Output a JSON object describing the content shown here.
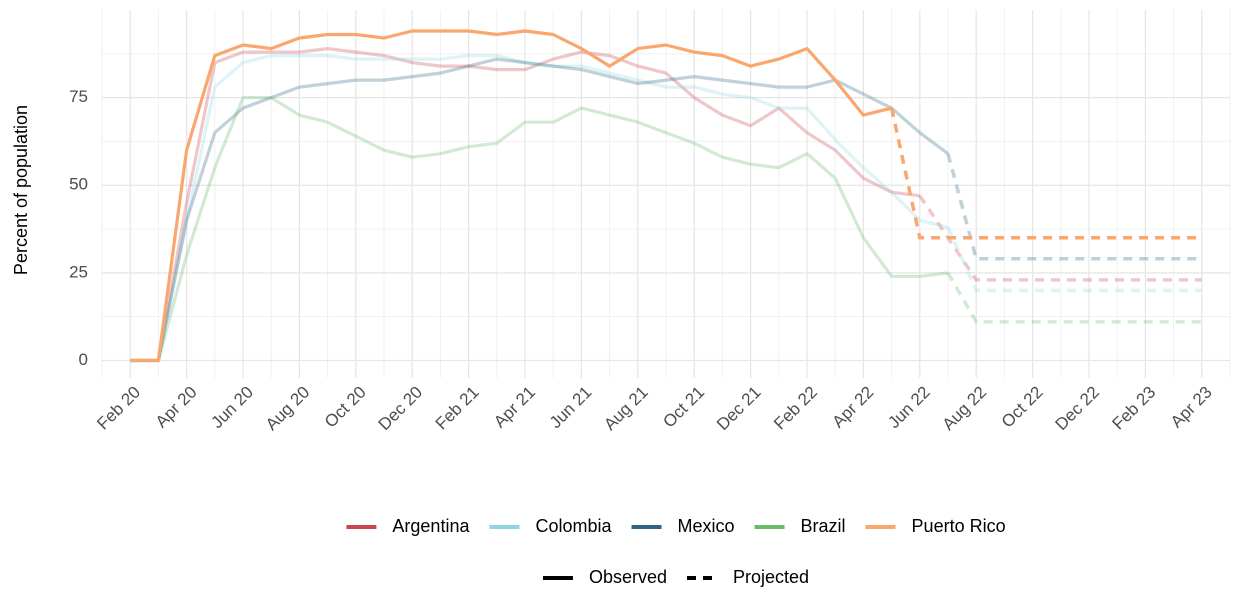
{
  "chart_data": {
    "type": "line",
    "y_label": "Percent of population",
    "x": [
      "2020-02",
      "2020-03",
      "2020-04",
      "2020-05",
      "2020-06",
      "2020-07",
      "2020-08",
      "2020-09",
      "2020-10",
      "2020-11",
      "2020-12",
      "2021-01",
      "2021-02",
      "2021-03",
      "2021-04",
      "2021-05",
      "2021-06",
      "2021-07",
      "2021-08",
      "2021-09",
      "2021-10",
      "2021-11",
      "2021-12",
      "2022-01",
      "2022-02",
      "2022-03",
      "2022-04",
      "2022-05",
      "2022-06",
      "2022-07",
      "2022-08",
      "2022-09",
      "2022-10",
      "2022-11",
      "2022-12",
      "2023-01",
      "2023-02",
      "2023-03",
      "2023-04"
    ],
    "xlim": [
      "2020-01",
      "2023-05"
    ],
    "xticks": [
      {
        "value": "2020-02",
        "label": "Feb 20"
      },
      {
        "value": "2020-04",
        "label": "Apr 20"
      },
      {
        "value": "2020-06",
        "label": "Jun 20"
      },
      {
        "value": "2020-08",
        "label": "Aug 20"
      },
      {
        "value": "2020-10",
        "label": "Oct 20"
      },
      {
        "value": "2020-12",
        "label": "Dec 20"
      },
      {
        "value": "2021-02",
        "label": "Feb 21"
      },
      {
        "value": "2021-04",
        "label": "Apr 21"
      },
      {
        "value": "2021-06",
        "label": "Jun 21"
      },
      {
        "value": "2021-08",
        "label": "Aug 21"
      },
      {
        "value": "2021-10",
        "label": "Oct 21"
      },
      {
        "value": "2021-12",
        "label": "Dec 21"
      },
      {
        "value": "2022-02",
        "label": "Feb 22"
      },
      {
        "value": "2022-04",
        "label": "Apr 22"
      },
      {
        "value": "2022-06",
        "label": "Jun 22"
      },
      {
        "value": "2022-08",
        "label": "Aug 22"
      },
      {
        "value": "2022-10",
        "label": "Oct 22"
      },
      {
        "value": "2022-12",
        "label": "Dec 22"
      },
      {
        "value": "2023-02",
        "label": "Feb 23"
      },
      {
        "value": "2023-04",
        "label": "Apr 23"
      }
    ],
    "ylim": [
      -5,
      100
    ],
    "yticks": [
      0,
      25,
      50,
      75
    ],
    "grid": true,
    "linetype_legend": [
      "Observed",
      "Projected"
    ],
    "series": [
      {
        "name": "Argentina",
        "color": "#c9474f",
        "alpha": 0.3,
        "values": [
          0,
          0,
          45,
          85,
          88,
          88,
          88,
          89,
          88,
          87,
          85,
          84,
          84,
          83,
          83,
          86,
          88,
          87,
          84,
          82,
          75,
          70,
          67,
          72,
          65,
          60,
          52,
          48,
          47,
          null,
          null,
          null,
          null,
          null,
          null,
          null,
          null,
          null,
          null
        ],
        "projected": [
          null,
          null,
          null,
          null,
          null,
          null,
          null,
          null,
          null,
          null,
          null,
          null,
          null,
          null,
          null,
          null,
          null,
          null,
          null,
          null,
          null,
          null,
          null,
          null,
          null,
          null,
          null,
          null,
          47,
          35,
          23,
          23,
          23,
          23,
          23,
          23,
          23,
          23,
          23
        ]
      },
      {
        "name": "Colombia",
        "color": "#8fd6e0",
        "alpha": 0.3,
        "values": [
          0,
          0,
          40,
          78,
          85,
          87,
          87,
          87,
          86,
          86,
          86,
          86,
          87,
          87,
          85,
          84,
          84,
          82,
          80,
          78,
          78,
          76,
          75,
          72,
          72,
          63,
          55,
          48,
          40,
          38,
          null,
          null,
          null,
          null,
          null,
          null,
          null,
          null,
          null
        ],
        "projected": [
          null,
          null,
          null,
          null,
          null,
          null,
          null,
          null,
          null,
          null,
          null,
          null,
          null,
          null,
          null,
          null,
          null,
          null,
          null,
          null,
          null,
          null,
          null,
          null,
          null,
          null,
          null,
          null,
          null,
          38,
          20,
          20,
          20,
          20,
          20,
          20,
          20,
          20,
          20
        ]
      },
      {
        "name": "Mexico",
        "color": "#2e6680",
        "alpha": 0.3,
        "values": [
          0,
          0,
          40,
          65,
          72,
          75,
          78,
          79,
          80,
          80,
          81,
          82,
          84,
          86,
          85,
          84,
          83,
          81,
          79,
          80,
          81,
          80,
          79,
          78,
          78,
          80,
          76,
          72,
          65,
          59,
          null,
          null,
          null,
          null,
          null,
          null,
          null,
          null,
          null
        ],
        "projected": [
          null,
          null,
          null,
          null,
          null,
          null,
          null,
          null,
          null,
          null,
          null,
          null,
          null,
          null,
          null,
          null,
          null,
          null,
          null,
          null,
          null,
          null,
          null,
          null,
          null,
          null,
          null,
          null,
          null,
          59,
          29,
          29,
          29,
          29,
          29,
          29,
          29,
          29,
          29
        ]
      },
      {
        "name": "Brazil",
        "color": "#6aba6e",
        "alpha": 0.3,
        "values": [
          0,
          0,
          30,
          55,
          75,
          75,
          70,
          68,
          64,
          60,
          58,
          59,
          61,
          62,
          68,
          68,
          72,
          70,
          68,
          65,
          62,
          58,
          56,
          55,
          59,
          52,
          35,
          24,
          24,
          25,
          null,
          null,
          null,
          null,
          null,
          null,
          null,
          null,
          null
        ],
        "projected": [
          null,
          null,
          null,
          null,
          null,
          null,
          null,
          null,
          null,
          null,
          null,
          null,
          null,
          null,
          null,
          null,
          null,
          null,
          null,
          null,
          null,
          null,
          null,
          null,
          null,
          null,
          null,
          null,
          null,
          25,
          11,
          11,
          11,
          11,
          11,
          11,
          11,
          11,
          11
        ]
      },
      {
        "name": "Puerto Rico",
        "color": "#f9a66f",
        "alpha": 1,
        "values": [
          0,
          0,
          60,
          87,
          90,
          89,
          92,
          93,
          93,
          92,
          94,
          94,
          94,
          93,
          94,
          93,
          89,
          84,
          89,
          90,
          88,
          87,
          84,
          86,
          89,
          80,
          70,
          72,
          null,
          null,
          null,
          null,
          null,
          null,
          null,
          null,
          null,
          null,
          null
        ],
        "projected": [
          null,
          null,
          null,
          null,
          null,
          null,
          null,
          null,
          null,
          null,
          null,
          null,
          null,
          null,
          null,
          null,
          null,
          null,
          null,
          null,
          null,
          null,
          null,
          null,
          null,
          null,
          null,
          72,
          35,
          35,
          35,
          35,
          35,
          35,
          35,
          35,
          35,
          35,
          35
        ]
      }
    ]
  }
}
